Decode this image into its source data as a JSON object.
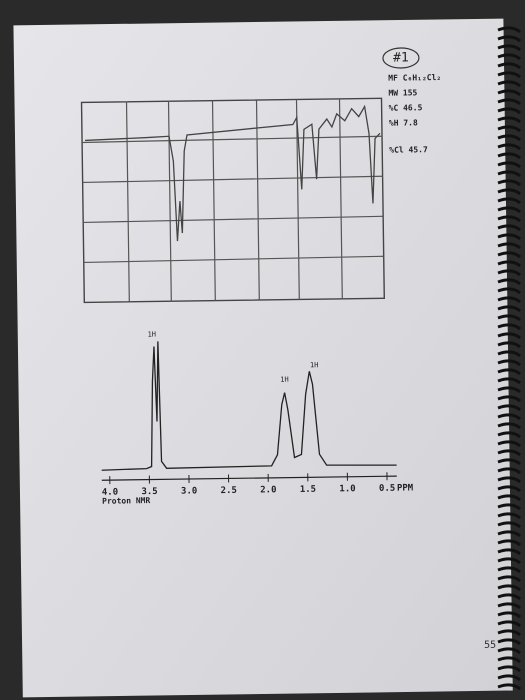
{
  "label": "#1",
  "info": [
    "MF C₆H₁₂Cl₂",
    "MW 155",
    "%C 46.5",
    "%H 7.8",
    "%Cl 45.7"
  ],
  "nmr": {
    "ticks": [
      "4.0",
      "3.5",
      "3.0",
      "2.5",
      "2.0",
      "1.5",
      "1.0",
      "0.5"
    ],
    "unit": "PPM",
    "caption": "Proton NMR",
    "peak_labels": [
      "1H",
      "1H",
      "1H"
    ]
  },
  "page_number": "55"
}
